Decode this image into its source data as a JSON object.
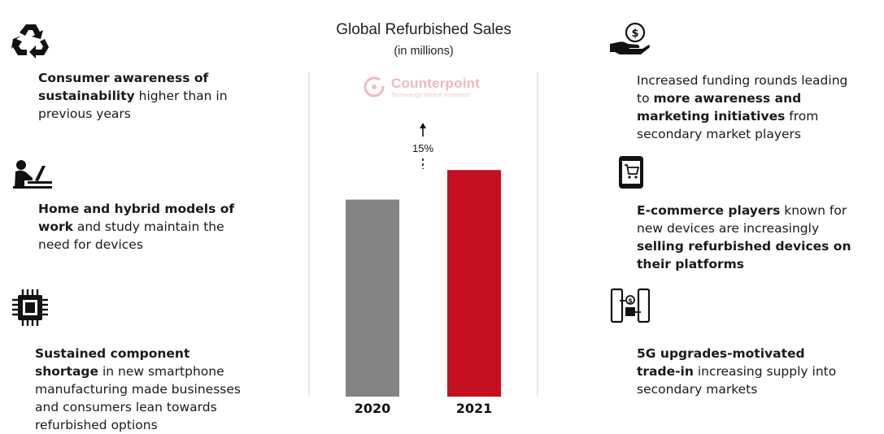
{
  "chart_data": {
    "type": "bar",
    "title": "Global Refurbished Sales",
    "subtitle": "(in millions)",
    "categories": [
      "2020",
      "2021"
    ],
    "values": [
      100,
      115
    ],
    "ylim": [
      0,
      165
    ],
    "annotation": "15%",
    "colors": [
      "#848484",
      "#c41020"
    ],
    "xlabel": "",
    "ylabel": ""
  },
  "watermark": {
    "brand": "Counterpoint",
    "tagline": "Technology Market Research"
  },
  "left_items": [
    {
      "icon": "recycle-icon",
      "parts": [
        {
          "text": "Consumer awareness of sustainability",
          "bold": true
        },
        {
          "text": " higher than in previous years",
          "bold": false
        }
      ]
    },
    {
      "icon": "person-laptop-icon",
      "parts": [
        {
          "text": "Home and hybrid models of work",
          "bold": true
        },
        {
          "text": " and study maintain the need for devices",
          "bold": false
        }
      ]
    },
    {
      "icon": "chip-icon",
      "parts": [
        {
          "text": "Sustained component shortage",
          "bold": true
        },
        {
          "text": " in new smartphone manufacturing made businesses and consumers lean towards refurbished options",
          "bold": false
        }
      ]
    }
  ],
  "right_items": [
    {
      "icon": "hand-money-icon",
      "parts": [
        {
          "text": "Increased funding rounds leading to ",
          "bold": false
        },
        {
          "text": "more awareness and marketing initiatives",
          "bold": true
        },
        {
          "text": " from secondary market players",
          "bold": false
        }
      ]
    },
    {
      "icon": "shopping-phone-icon",
      "parts": [
        {
          "text": "E-commerce players",
          "bold": true
        },
        {
          "text": " known for new devices are increasingly ",
          "bold": false
        },
        {
          "text": "selling refurbished devices on their platforms",
          "bold": true
        }
      ]
    },
    {
      "icon": "trade-in-icon",
      "parts": [
        {
          "text": "5G upgrades-motivated trade-in",
          "bold": true
        },
        {
          "text": " increasing supply into secondary markets",
          "bold": false
        }
      ]
    }
  ]
}
